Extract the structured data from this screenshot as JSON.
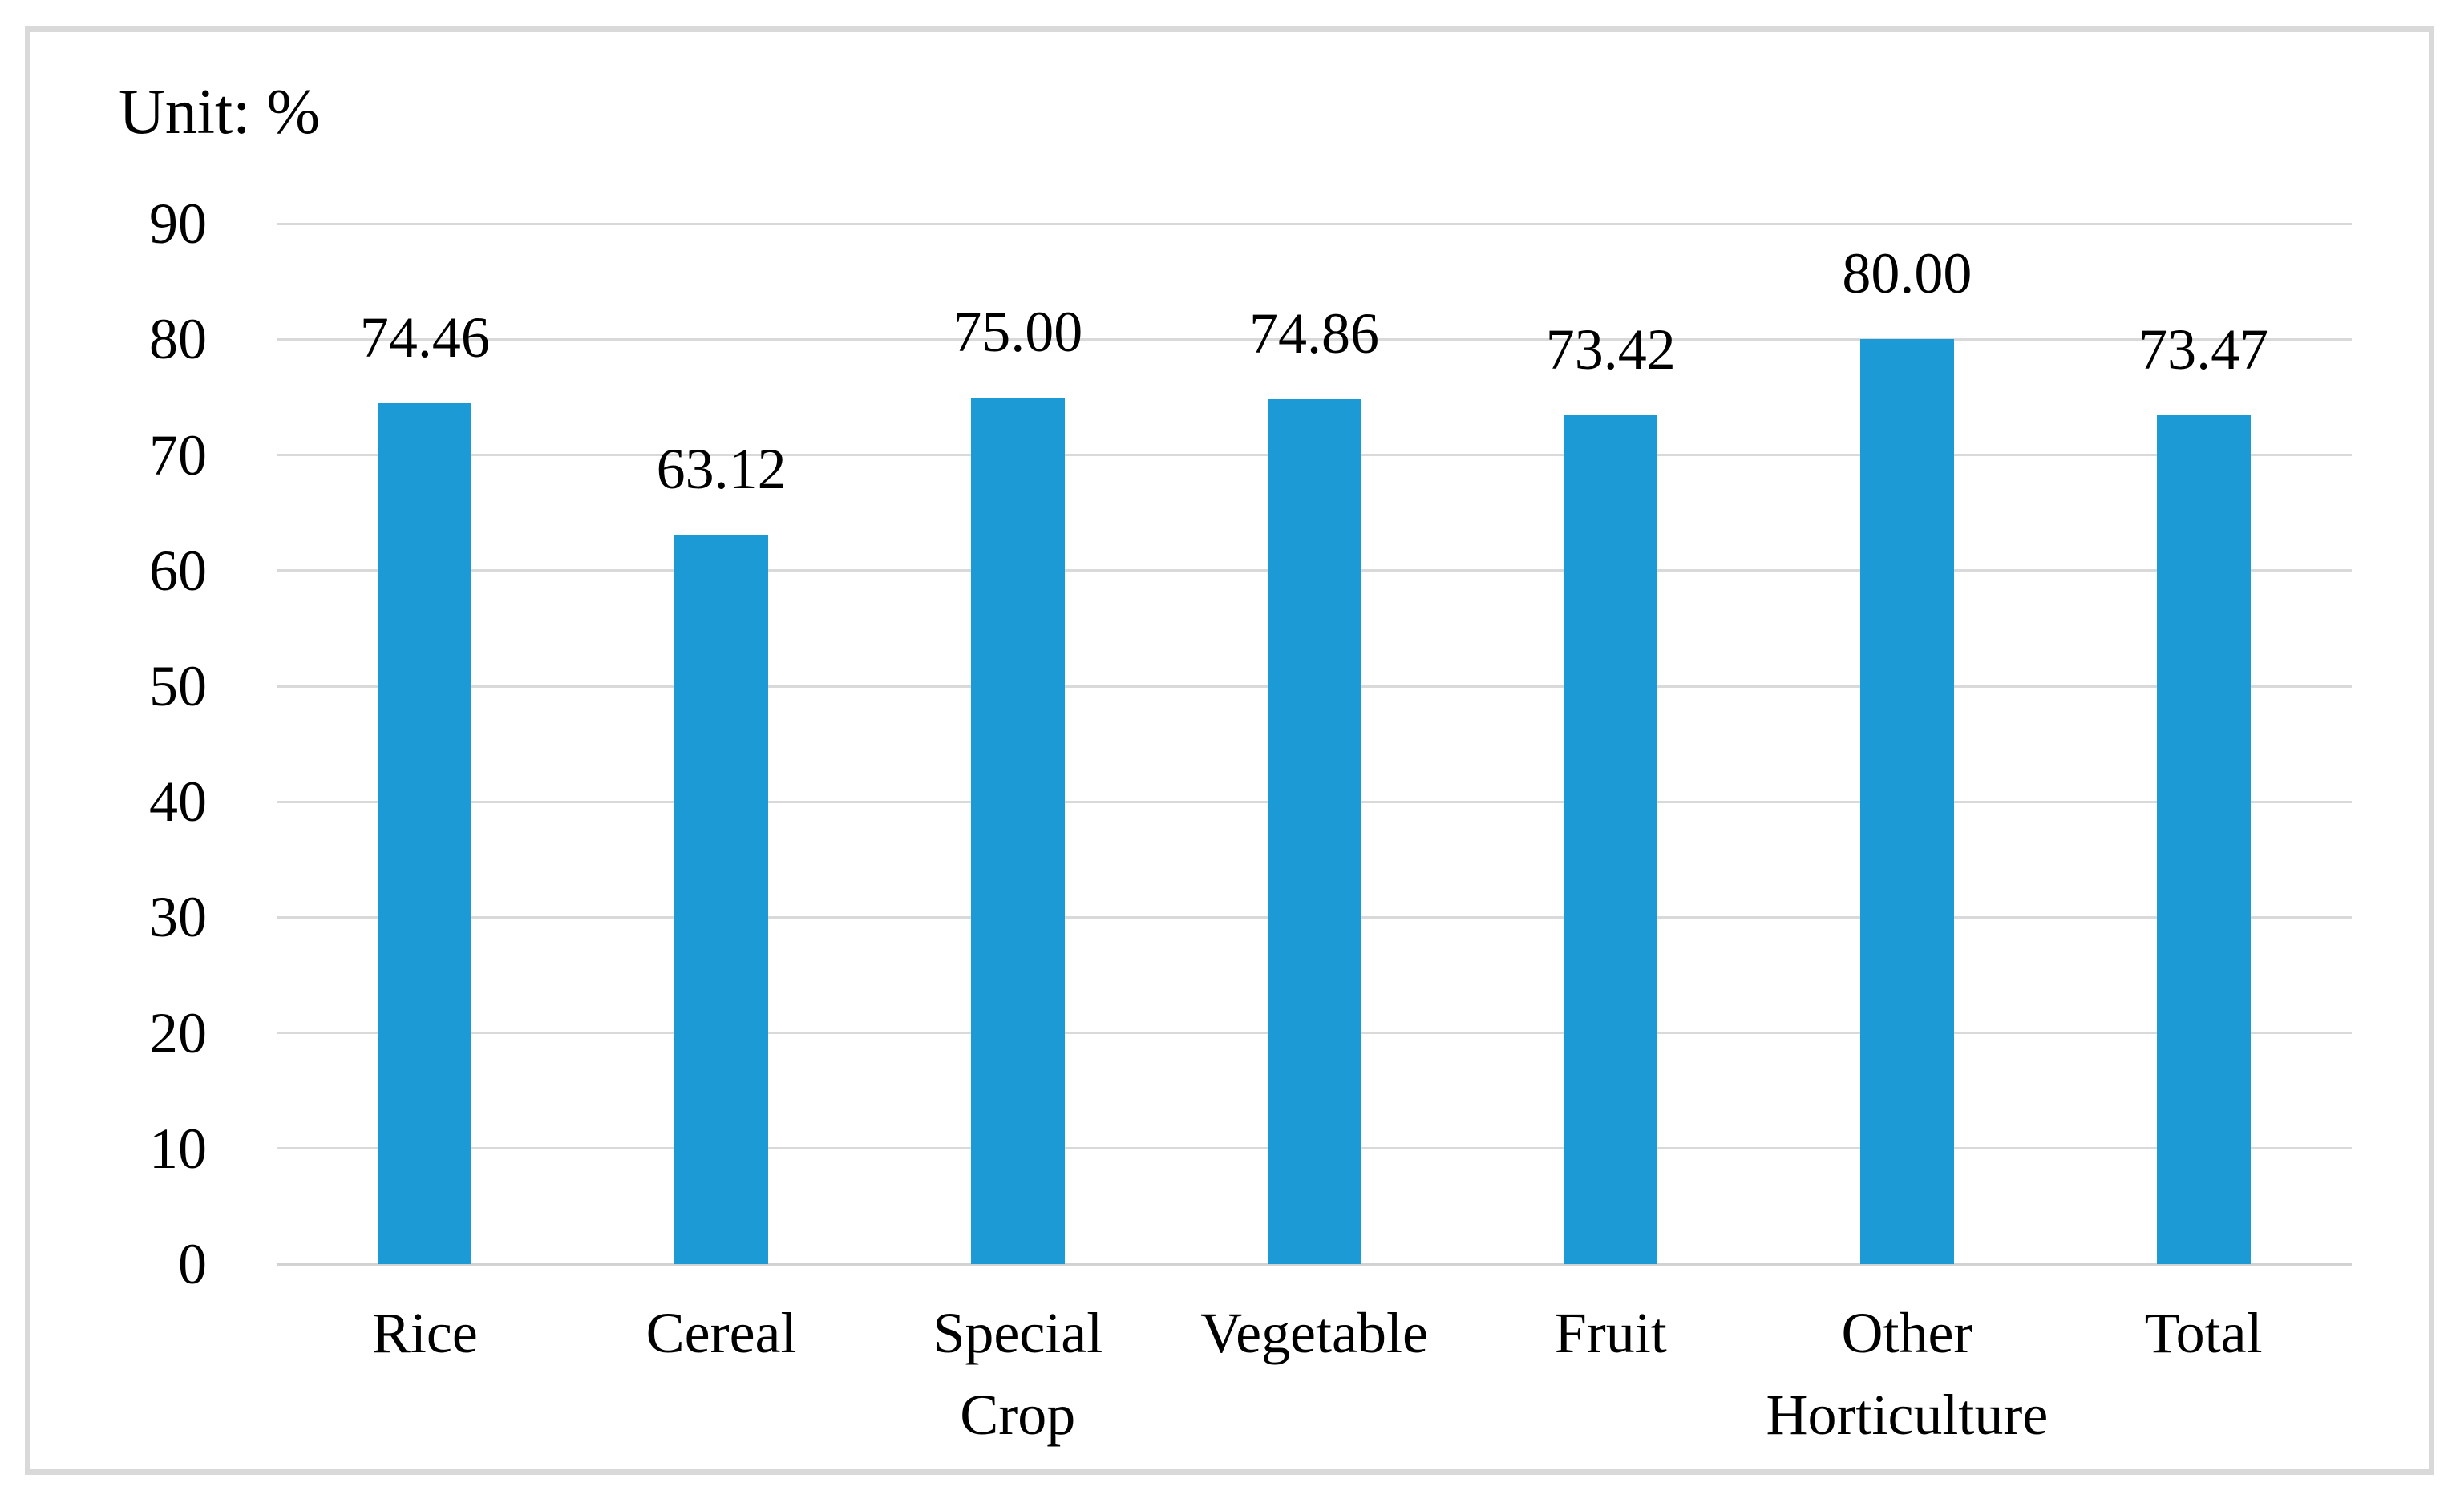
{
  "chart_data": {
    "type": "bar",
    "title": "Unit: %",
    "unit": "%",
    "categories": [
      "Rice",
      "Cereal",
      "Special\nCrop",
      "Vegetable",
      "Fruit",
      "Other\nHorticulture",
      "Total"
    ],
    "values": [
      74.46,
      63.12,
      75.0,
      74.86,
      73.42,
      80.0,
      73.47
    ],
    "data_labels": [
      "74.46",
      "63.12",
      "75.00",
      "74.86",
      "73.42",
      "80.00",
      "73.47"
    ],
    "yticks": [
      0,
      10,
      20,
      30,
      40,
      50,
      60,
      70,
      80,
      90
    ],
    "ytick_labels": [
      "0",
      "10",
      "20",
      "30",
      "40",
      "50",
      "60",
      "70",
      "80",
      "90"
    ],
    "ylim": [
      0,
      90
    ],
    "grid": "horizontal",
    "legend": "none",
    "colors": {
      "bar": "#1b9ad6",
      "gridline": "#d9d9d9",
      "axis_line": "#d2d2d2",
      "text": "#000000",
      "frame_border": "#d9d9d9",
      "background": "#ffffff"
    }
  }
}
